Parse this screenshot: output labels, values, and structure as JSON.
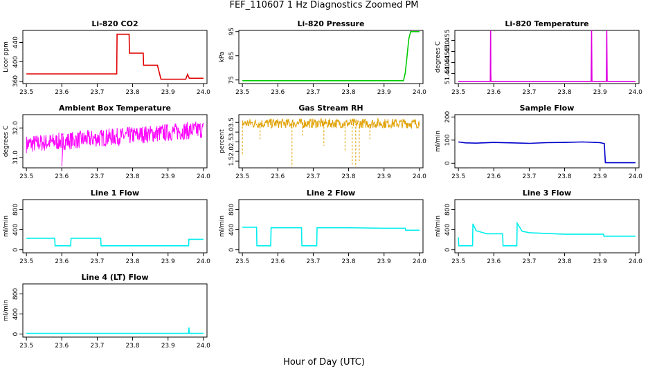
{
  "title": "FEF_110607  1 Hz Diagnostics Zoomed PM",
  "xlabel": "Hour of Day (UTC)",
  "chart_data": [
    {
      "type": "line",
      "title": "Li-820 CO2",
      "ylabel": "Licor ppm",
      "color": "#e00000",
      "xlim": [
        23.49,
        24.01
      ],
      "ylim": [
        355,
        465
      ],
      "xticks": [
        "23.5",
        "23.6",
        "23.7",
        "23.8",
        "23.9",
        "24.0"
      ],
      "yticks": [
        "360",
        "400",
        "440"
      ],
      "x": [
        23.5,
        23.6,
        23.7,
        23.755,
        23.756,
        23.78,
        23.79,
        23.791,
        23.83,
        23.831,
        23.87,
        23.88,
        23.95,
        23.955,
        23.96,
        23.965,
        24.0
      ],
      "y": [
        375,
        375,
        375,
        375,
        457,
        457,
        457,
        418,
        418,
        393,
        393,
        364,
        364,
        374,
        366,
        366,
        366
      ]
    },
    {
      "type": "line",
      "title": "Li-820 Pressure",
      "ylabel": "kPa",
      "color": "#00cc00",
      "xlim": [
        23.49,
        24.01
      ],
      "ylim": [
        73.5,
        95.5
      ],
      "xticks": [
        "23.5",
        "23.6",
        "23.7",
        "23.8",
        "23.9",
        "24.0"
      ],
      "yticks": [
        "75",
        "85",
        "95"
      ],
      "x": [
        23.5,
        23.6,
        23.7,
        23.8,
        23.9,
        23.93,
        23.955,
        23.96,
        23.965,
        23.97,
        23.975,
        23.98,
        24.0
      ],
      "y": [
        74.7,
        74.7,
        74.7,
        74.7,
        74.7,
        74.7,
        74.7,
        78,
        85,
        92,
        95,
        95,
        95
      ]
    },
    {
      "type": "line",
      "title": "Li-820 Temperature",
      "ylabel": "degrees C",
      "color": "#e000e0",
      "xlim": [
        23.49,
        24.01
      ],
      "ylim": [
        51.4355,
        51.4595
      ],
      "xticks": [
        "23.5",
        "23.6",
        "23.7",
        "23.8",
        "23.9",
        "24.0"
      ],
      "yticks": [
        "51.440",
        "51.445",
        "51.450",
        "51.455"
      ],
      "x": [
        23.5,
        23.59,
        23.591,
        23.5915,
        23.592,
        23.593,
        23.594,
        23.875,
        23.876,
        23.877,
        23.918,
        23.919,
        23.92,
        24.0
      ],
      "y": [
        51.4365,
        51.4365,
        51.4595,
        51.4405,
        51.4365,
        51.4365,
        51.4365,
        51.4365,
        51.4595,
        51.4365,
        51.4365,
        51.4595,
        51.4365,
        51.4365
      ]
    },
    {
      "type": "line",
      "title": "Ambient Box Temperature",
      "ylabel": "degrees C",
      "color": "#ff00ff",
      "xlim": [
        23.49,
        24.01
      ],
      "ylim": [
        30.65,
        32.45
      ],
      "xticks": [
        "23.5",
        "23.6",
        "23.7",
        "23.8",
        "23.9",
        "24.0"
      ],
      "yticks": [
        "31.0",
        "32.0"
      ],
      "x": [
        23.5,
        23.55,
        23.6,
        23.65,
        23.7,
        23.75,
        23.8,
        23.85,
        23.9,
        23.95,
        24.0
      ],
      "y": [
        31.45,
        31.5,
        31.55,
        31.6,
        31.65,
        31.7,
        31.75,
        31.8,
        31.85,
        31.9,
        31.95
      ],
      "noise": 0.3
    },
    {
      "type": "line",
      "title": "Gas Stream RH",
      "ylabel": "percent",
      "color": "#e0a000",
      "xlim": [
        23.49,
        24.01
      ],
      "ylim": [
        1.15,
        3.9
      ],
      "xticks": [
        "23.5",
        "23.6",
        "23.7",
        "23.8",
        "23.9",
        "24.0"
      ],
      "yticks": [
        "1.5",
        "2.0",
        "2.5",
        "3.0",
        "3.5"
      ],
      "x": [
        23.5,
        23.6,
        23.7,
        23.8,
        23.9,
        24.0
      ],
      "y": [
        3.45,
        3.45,
        3.45,
        3.45,
        3.45,
        3.45
      ],
      "dips": [
        [
          23.5,
          1.8
        ],
        [
          23.55,
          2.6
        ],
        [
          23.64,
          1.2
        ],
        [
          23.67,
          2.8
        ],
        [
          23.73,
          2.3
        ],
        [
          23.79,
          2.0
        ],
        [
          23.81,
          1.3
        ],
        [
          23.82,
          1.2
        ],
        [
          23.83,
          1.5
        ],
        [
          23.86,
          2.6
        ]
      ]
    },
    {
      "type": "line",
      "title": "Sample Flow",
      "ylabel": "ml/min",
      "color": "#0000cc",
      "xlim": [
        23.49,
        24.01
      ],
      "ylim": [
        -20,
        210
      ],
      "xticks": [
        "23.5",
        "23.6",
        "23.7",
        "23.8",
        "23.9",
        "24.0"
      ],
      "yticks": [
        "0",
        "100",
        "200"
      ],
      "x": [
        23.5,
        23.52,
        23.55,
        23.6,
        23.65,
        23.7,
        23.75,
        23.8,
        23.85,
        23.9,
        23.912,
        23.915,
        23.93,
        23.95,
        24.0
      ],
      "y": [
        92,
        88,
        87,
        90,
        88,
        86,
        89,
        90,
        92,
        89,
        85,
        2,
        2,
        2,
        2
      ]
    },
    {
      "type": "line",
      "title": "Line 1 Flow",
      "ylabel": "ml/min",
      "color": "#00eeee",
      "xlim": [
        23.49,
        24.01
      ],
      "ylim": [
        -60,
        1000
      ],
      "xticks": [
        "23.5",
        "23.6",
        "23.7",
        "23.8",
        "23.9",
        "24.0"
      ],
      "yticks": [
        "0",
        "400",
        "800"
      ],
      "x": [
        23.5,
        23.58,
        23.581,
        23.625,
        23.626,
        23.71,
        23.711,
        23.8,
        23.9,
        23.958,
        23.959,
        24.0
      ],
      "y": [
        230,
        230,
        80,
        80,
        230,
        230,
        80,
        80,
        80,
        80,
        210,
        210
      ]
    },
    {
      "type": "line",
      "title": "Line 2 Flow",
      "ylabel": "ml/min",
      "color": "#00eeee",
      "xlim": [
        23.49,
        24.01
      ],
      "ylim": [
        -60,
        1000
      ],
      "xticks": [
        "23.5",
        "23.6",
        "23.7",
        "23.8",
        "23.9",
        "24.0"
      ],
      "yticks": [
        "0",
        "400",
        "800"
      ],
      "x": [
        23.5,
        23.54,
        23.541,
        23.58,
        23.581,
        23.667,
        23.668,
        23.71,
        23.711,
        23.8,
        23.9,
        23.96,
        23.961,
        24.0
      ],
      "y": [
        450,
        450,
        80,
        80,
        440,
        440,
        80,
        80,
        440,
        440,
        430,
        430,
        390,
        390
      ]
    },
    {
      "type": "line",
      "title": "Line 3 Flow",
      "ylabel": "ml/min",
      "color": "#00eeee",
      "xlim": [
        23.49,
        24.01
      ],
      "ylim": [
        -60,
        1000
      ],
      "xticks": [
        "23.5",
        "23.6",
        "23.7",
        "23.8",
        "23.9",
        "24.0"
      ],
      "yticks": [
        "0",
        "400",
        "800"
      ],
      "x": [
        23.5,
        23.501,
        23.54,
        23.541,
        23.55,
        23.58,
        23.625,
        23.626,
        23.665,
        23.666,
        23.68,
        23.7,
        23.8,
        23.91,
        23.911,
        24.0
      ],
      "y": [
        250,
        80,
        80,
        520,
        380,
        320,
        320,
        80,
        80,
        530,
        370,
        340,
        310,
        310,
        270,
        270
      ]
    },
    {
      "type": "line",
      "title": "Line 4 (LT) Flow",
      "ylabel": "ml/min",
      "color": "#00eeee",
      "xlim": [
        23.49,
        24.01
      ],
      "ylim": [
        -60,
        1000
      ],
      "xticks": [
        "23.5",
        "23.6",
        "23.7",
        "23.8",
        "23.9",
        "24.0"
      ],
      "yticks": [
        "0",
        "400",
        "800"
      ],
      "x": [
        23.5,
        23.6,
        23.7,
        23.8,
        23.9,
        23.958,
        23.959,
        23.96,
        24.0
      ],
      "y": [
        15,
        15,
        15,
        15,
        15,
        15,
        130,
        15,
        15
      ]
    }
  ]
}
